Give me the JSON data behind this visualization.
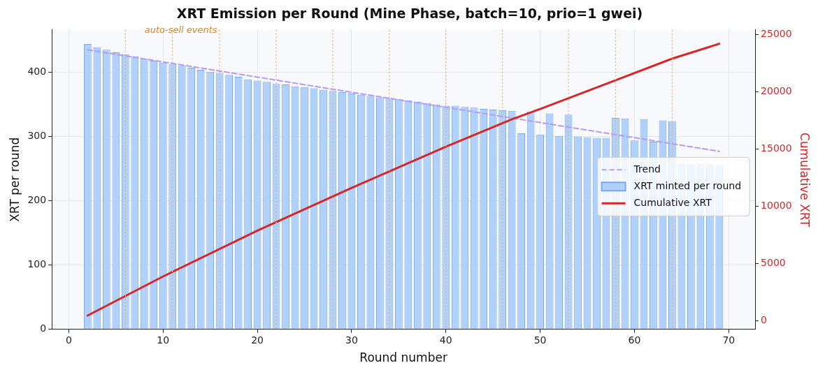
{
  "chart_data": {
    "type": "bar",
    "title": "XRT Emission per Round (Mine Phase, batch=10, prio=1 gwei)",
    "xlabel": "Round number",
    "ylabel": "XRT per round",
    "y2label": "Cumulative XRT",
    "xlim": [
      -1.8,
      72.8
    ],
    "xticks": [
      0,
      10,
      20,
      30,
      40,
      50,
      60,
      70
    ],
    "ylim": [
      0,
      466
    ],
    "yticks": [
      0,
      100,
      200,
      300,
      400
    ],
    "y2lim": [
      -767,
      25413
    ],
    "y2ticks": [
      0,
      5000,
      10000,
      15000,
      20000,
      25000
    ],
    "grid": true,
    "legend": "right",
    "series": [
      {
        "name": "Trend",
        "type": "line",
        "line_style": "dashed",
        "color": "#b79af2",
        "x": [
          2,
          69
        ],
        "values": [
          435,
          277
        ]
      },
      {
        "name": "XRT minted per round",
        "color": "#b0d2fa",
        "x": [
          2,
          3,
          4,
          5,
          6,
          7,
          8,
          9,
          10,
          11,
          12,
          13,
          14,
          15,
          16,
          17,
          18,
          19,
          20,
          21,
          22,
          23,
          24,
          25,
          26,
          27,
          28,
          29,
          30,
          31,
          32,
          33,
          34,
          35,
          36,
          37,
          38,
          39,
          40,
          41,
          42,
          43,
          44,
          45,
          46,
          47,
          48,
          49,
          50,
          51,
          52,
          53,
          54,
          55,
          56,
          57,
          58,
          59,
          60,
          61,
          62,
          63,
          64,
          65,
          66,
          67,
          68,
          69
        ],
        "values": [
          444,
          439,
          435,
          431,
          428,
          425,
          421,
          418,
          415,
          413,
          410,
          407,
          404,
          401,
          399,
          396,
          393,
          389,
          387,
          385,
          382,
          381,
          378,
          377,
          375,
          373,
          371,
          369,
          367,
          365,
          363,
          361,
          360,
          358,
          356,
          354,
          352,
          350,
          348,
          348,
          346,
          345,
          343,
          342,
          341,
          340,
          305,
          339,
          303,
          336,
          301,
          334,
          300,
          299,
          298,
          298,
          329,
          328,
          294,
          327,
          292,
          325,
          324,
          258,
          257,
          257,
          257,
          256
        ]
      },
      {
        "name": "Cumulative XRT",
        "type": "line",
        "axis": "y2",
        "line_style": "solid",
        "color": "#d62728",
        "x": [
          2,
          10,
          20,
          30,
          40,
          47,
          50,
          57,
          64,
          69
        ],
        "values": [
          440,
          3860,
          7860,
          11600,
          15200,
          17600,
          18500,
          20700,
          22900,
          24200
        ]
      }
    ],
    "ref_lines": [
      {
        "axis": "x",
        "value": 6,
        "color": "#f0b070",
        "line_style": "dotted"
      },
      {
        "axis": "x",
        "value": 11,
        "color": "#f0b070",
        "line_style": "dotted",
        "label": "auto-sell events"
      },
      {
        "axis": "x",
        "value": 16,
        "color": "#f0b070",
        "line_style": "dotted"
      },
      {
        "axis": "x",
        "value": 22,
        "color": "#f0b070",
        "line_style": "dotted"
      },
      {
        "axis": "x",
        "value": 28,
        "color": "#f0b070",
        "line_style": "dotted"
      },
      {
        "axis": "x",
        "value": 34,
        "color": "#f0b070",
        "line_style": "dotted"
      },
      {
        "axis": "x",
        "value": 40,
        "color": "#f0b070",
        "line_style": "dotted"
      },
      {
        "axis": "x",
        "value": 46,
        "color": "#f0b070",
        "line_style": "dotted"
      },
      {
        "axis": "x",
        "value": 53,
        "color": "#f0b070",
        "line_style": "dotted"
      },
      {
        "axis": "x",
        "value": 58,
        "color": "#f0b070",
        "line_style": "dotted"
      },
      {
        "axis": "x",
        "value": 64,
        "color": "#f0b070",
        "line_style": "dotted"
      }
    ]
  }
}
